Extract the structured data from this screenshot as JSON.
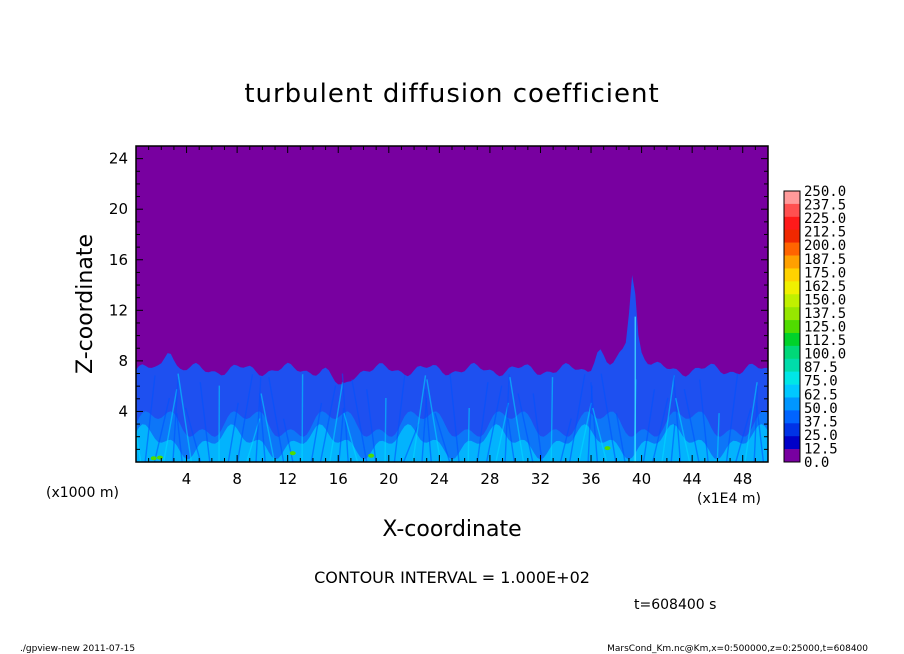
{
  "chart_data": {
    "type": "heatmap",
    "title": "turbulent diffusion coefficient",
    "xlabel": "X-coordinate",
    "ylabel": "Z-coordinate",
    "x_scale_label": "(x1E4 m)",
    "y_scale_label": "(x1000 m)",
    "xlim": [
      0,
      50
    ],
    "ylim": [
      0,
      25
    ],
    "x_ticks": [
      "4",
      "8",
      "12",
      "16",
      "20",
      "24",
      "28",
      "32",
      "36",
      "40",
      "44",
      "48"
    ],
    "y_ticks": [
      "4",
      "8",
      "12",
      "16",
      "20",
      "24"
    ],
    "colorbar_levels": [
      "250.0",
      "237.5",
      "225.0",
      "212.5",
      "200.0",
      "187.5",
      "175.0",
      "162.5",
      "150.0",
      "137.5",
      "125.0",
      "112.5",
      "100.0",
      "87.5",
      "75.0",
      "62.5",
      "50.0",
      "37.5",
      "25.0",
      "12.5",
      "0.0"
    ],
    "colorbar_colors": [
      "#ff9a9a",
      "#ff5050",
      "#ff1a1a",
      "#f02800",
      "#ff6400",
      "#ffa000",
      "#ffd200",
      "#f0f000",
      "#c0f000",
      "#96e600",
      "#50dc00",
      "#00d22a",
      "#00d878",
      "#00dcaa",
      "#00e6e6",
      "#00c8ff",
      "#0096ff",
      "#0064ff",
      "#0032e6",
      "#0000c8",
      "#7800a0"
    ],
    "background_color": "#7800a0",
    "contour_interval": "CONTOUR INTERVAL = 1.000E+02",
    "time_label": "t=608400 s"
  },
  "footer": {
    "left": "./gpview-new 2011-07-15",
    "right": "MarsCond_Km.nc@Km,x=0:500000,z=0:25000,t=608400"
  }
}
